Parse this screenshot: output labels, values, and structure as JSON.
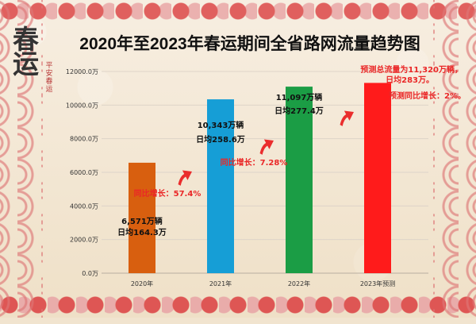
{
  "title": "2020年至2023年春运期间全省路网流量趋势图",
  "logo": {
    "main": "春运",
    "seal": "平安春运"
  },
  "chart_data": {
    "type": "bar",
    "categories": [
      "2020年",
      "2021年",
      "2022年",
      "2023年预测"
    ],
    "values": [
      6571,
      10343,
      11097,
      11320
    ],
    "ylim": [
      0,
      12000
    ],
    "ticks": [
      "0.0万",
      "2000.0万",
      "4000.0万",
      "6000.0万",
      "8000.0万",
      "10000.0万",
      "12000.0万"
    ],
    "tick_values": [
      0,
      2000,
      4000,
      6000,
      8000,
      10000,
      12000
    ],
    "bar_colors": [
      "#d85f0f",
      "#169ed6",
      "#1b9d45",
      "#ff1b1b"
    ],
    "annotations": {
      "bars": [
        [
          "6,571万辆",
          "日均164.3万"
        ],
        [
          "10,343万辆",
          "日均258.6万"
        ],
        [
          "11,097万辆",
          "日均277.4万"
        ],
        []
      ],
      "growth": [
        "同比增长：57.4%",
        "同比增长：7.28%",
        "预测同比增长：2%。"
      ],
      "forecast": [
        "预测总流量为11,320万辆，",
        "日均283万。"
      ]
    },
    "grid": true,
    "legend": ""
  }
}
